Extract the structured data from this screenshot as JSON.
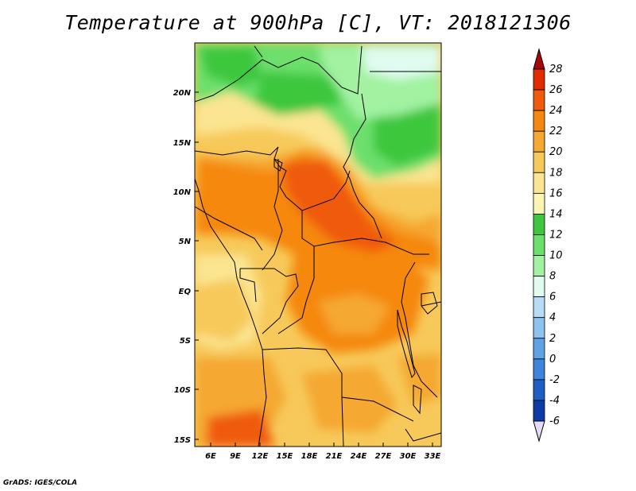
{
  "title": "Temperature at 900hPa [C], VT: 2018121306",
  "credit": "GrADS: IGES/COLA",
  "axes": {
    "lat_labels": [
      "20N",
      "15N",
      "10N",
      "5N",
      "EQ",
      "5S",
      "10S",
      "15S"
    ],
    "lon_labels": [
      "6E",
      "9E",
      "12E",
      "15E",
      "18E",
      "21E",
      "24E",
      "27E",
      "30E",
      "33E"
    ]
  },
  "colorbar": {
    "levels": [
      "28",
      "26",
      "24",
      "22",
      "20",
      "18",
      "16",
      "14",
      "12",
      "10",
      "8",
      "6",
      "4",
      "2",
      "0",
      "-2",
      "-4",
      "-6"
    ],
    "colors": [
      "#a50a0a",
      "#e22b00",
      "#f05a0a",
      "#f5880f",
      "#f5a832",
      "#f7c95a",
      "#fbe592",
      "#fcf6b4",
      "#3ec73e",
      "#6cdf6c",
      "#a2f2a2",
      "#e0fbf0",
      "#b7dcf7",
      "#8ec2ef",
      "#5fa3e6",
      "#3c84dc",
      "#1f5fc4",
      "#0e3ba6",
      "#0a1c74"
    ]
  }
}
